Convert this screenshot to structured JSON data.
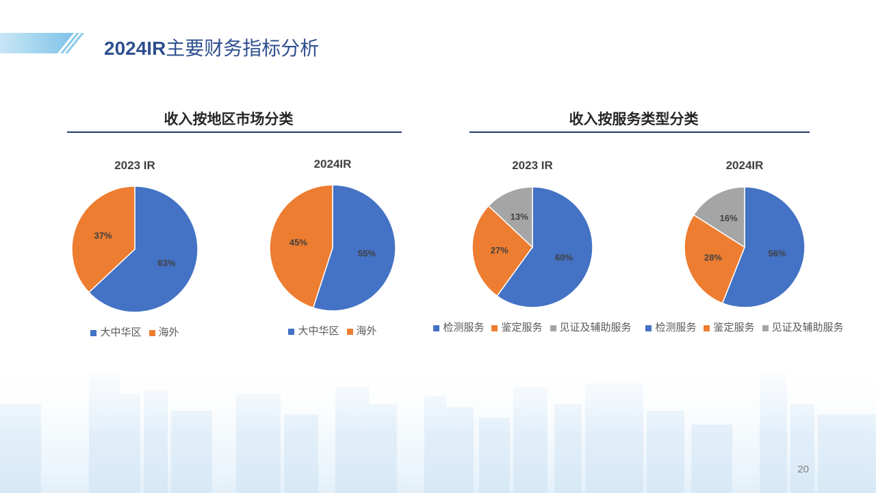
{
  "slide": {
    "title_prefix": "2024IR",
    "title_main": "主要财务指标分析",
    "page_number": "20"
  },
  "sections": [
    {
      "title": "收入按地区市场分类"
    },
    {
      "title": "收入按服务类型分类"
    }
  ],
  "colors": {
    "title": "#2e4f8f",
    "section_rule": "#1f3864",
    "series": [
      "#4472c4",
      "#ed7d31",
      "#a5a5a5"
    ]
  },
  "chart_data": [
    {
      "type": "pie",
      "title": "2023 IR",
      "categories": [
        "大中华区",
        "海外"
      ],
      "values": [
        63,
        37
      ],
      "unit": "%",
      "legend": "bottom"
    },
    {
      "type": "pie",
      "title": "2024IR",
      "categories": [
        "大中华区",
        "海外"
      ],
      "values": [
        55,
        45
      ],
      "unit": "%",
      "legend": "bottom"
    },
    {
      "type": "pie",
      "title": "2023 IR",
      "categories": [
        "检测服务",
        "鉴定服务",
        "见证及辅助服务"
      ],
      "values": [
        60,
        27,
        13
      ],
      "unit": "%",
      "legend": "bottom"
    },
    {
      "type": "pie",
      "title": "2024IR",
      "categories": [
        "检测服务",
        "鉴定服务",
        "见证及辅助服务"
      ],
      "values": [
        56,
        28,
        16
      ],
      "unit": "%",
      "legend": "bottom"
    }
  ]
}
